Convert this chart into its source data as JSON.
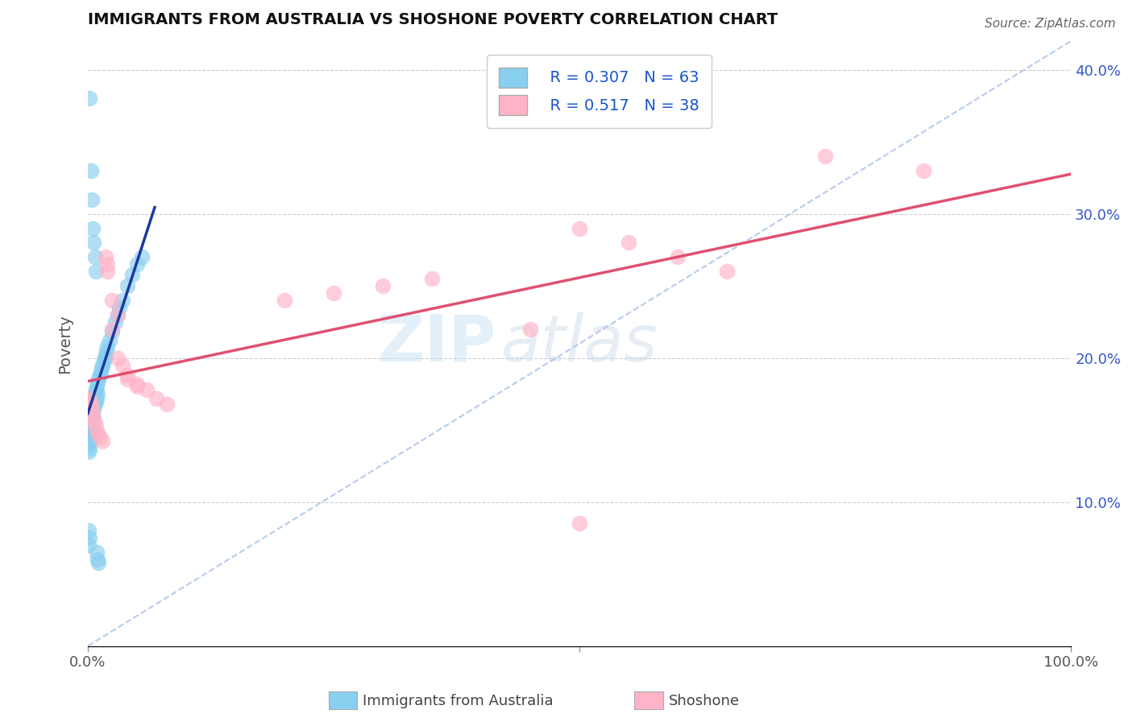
{
  "title": "IMMIGRANTS FROM AUSTRALIA VS SHOSHONE POVERTY CORRELATION CHART",
  "source": "Source: ZipAtlas.com",
  "ylabel": "Poverty",
  "xlim": [
    0,
    1.0
  ],
  "ylim": [
    0,
    0.42
  ],
  "legend_labels": [
    "Immigrants from Australia",
    "Shoshone"
  ],
  "blue_color": "#89CFF0",
  "pink_color": "#FFB3C6",
  "blue_line_color": "#1a3a9e",
  "pink_line_color": "#e05070",
  "diag_color": "#aac4e8",
  "R_blue": 0.307,
  "N_blue": 63,
  "R_pink": 0.517,
  "N_pink": 38,
  "blue_scatter_x": [
    0.001,
    0.001,
    0.001,
    0.001,
    0.001,
    0.002,
    0.002,
    0.002,
    0.002,
    0.002,
    0.003,
    0.003,
    0.003,
    0.003,
    0.004,
    0.004,
    0.004,
    0.005,
    0.005,
    0.005,
    0.006,
    0.006,
    0.007,
    0.007,
    0.008,
    0.008,
    0.009,
    0.009,
    0.01,
    0.01,
    0.011,
    0.012,
    0.013,
    0.014,
    0.015,
    0.016,
    0.017,
    0.018,
    0.019,
    0.02,
    0.022,
    0.025,
    0.028,
    0.03,
    0.032,
    0.035,
    0.04,
    0.045,
    0.05,
    0.055,
    0.002,
    0.003,
    0.004,
    0.005,
    0.006,
    0.007,
    0.008,
    0.001,
    0.001,
    0.002,
    0.009,
    0.01,
    0.011
  ],
  "blue_scatter_y": [
    0.155,
    0.15,
    0.145,
    0.14,
    0.135,
    0.16,
    0.155,
    0.148,
    0.142,
    0.137,
    0.165,
    0.158,
    0.152,
    0.145,
    0.168,
    0.16,
    0.153,
    0.17,
    0.162,
    0.155,
    0.172,
    0.165,
    0.175,
    0.168,
    0.178,
    0.17,
    0.18,
    0.172,
    0.183,
    0.175,
    0.186,
    0.188,
    0.19,
    0.193,
    0.195,
    0.198,
    0.2,
    0.202,
    0.205,
    0.208,
    0.212,
    0.218,
    0.225,
    0.23,
    0.235,
    0.24,
    0.25,
    0.258,
    0.265,
    0.27,
    0.38,
    0.33,
    0.31,
    0.29,
    0.28,
    0.27,
    0.26,
    0.08,
    0.07,
    0.075,
    0.065,
    0.06,
    0.058
  ],
  "pink_scatter_x": [
    0.001,
    0.002,
    0.003,
    0.004,
    0.005,
    0.006,
    0.007,
    0.008,
    0.01,
    0.012,
    0.015,
    0.018,
    0.02,
    0.025,
    0.03,
    0.035,
    0.04,
    0.05,
    0.06,
    0.07,
    0.08,
    0.02,
    0.025,
    0.03,
    0.04,
    0.05,
    0.2,
    0.25,
    0.3,
    0.35,
    0.45,
    0.5,
    0.55,
    0.6,
    0.65,
    0.75,
    0.85,
    0.5
  ],
  "pink_scatter_y": [
    0.17,
    0.172,
    0.168,
    0.165,
    0.162,
    0.158,
    0.155,
    0.152,
    0.148,
    0.145,
    0.142,
    0.27,
    0.265,
    0.22,
    0.2,
    0.195,
    0.188,
    0.182,
    0.178,
    0.172,
    0.168,
    0.26,
    0.24,
    0.23,
    0.185,
    0.18,
    0.24,
    0.245,
    0.25,
    0.255,
    0.22,
    0.29,
    0.28,
    0.27,
    0.26,
    0.34,
    0.33,
    0.085
  ]
}
